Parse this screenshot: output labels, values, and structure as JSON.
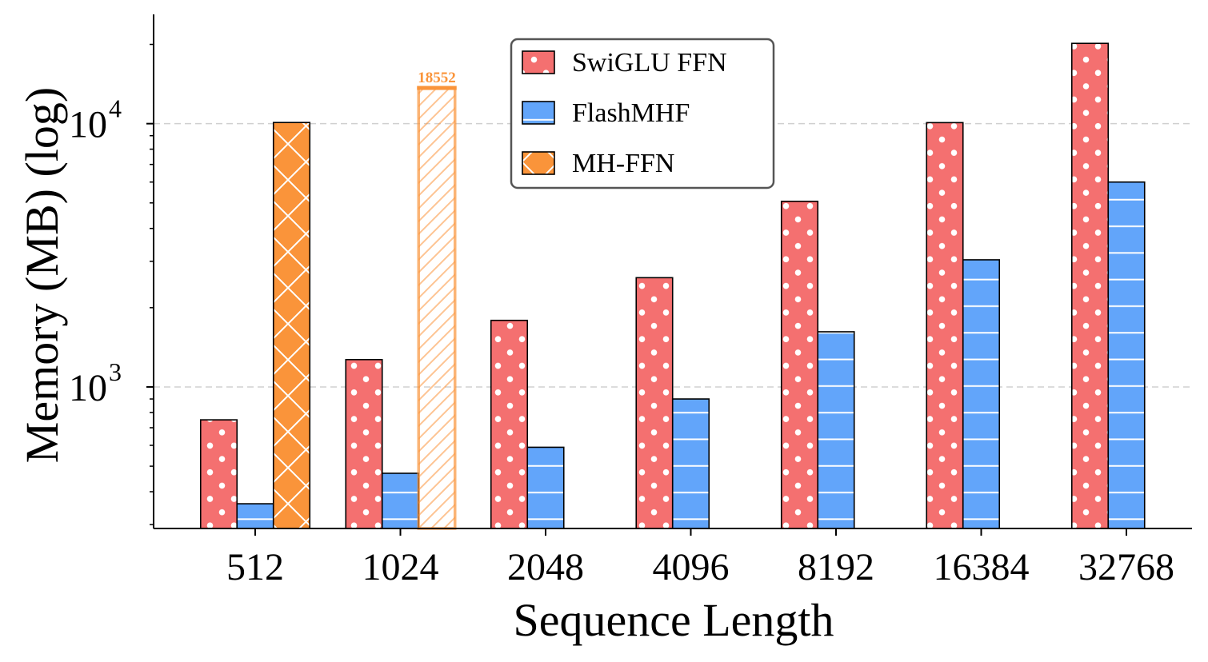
{
  "chart_data": {
    "type": "bar",
    "title": "",
    "xlabel": "Sequence Length",
    "ylabel": "Memory (MB) (log)",
    "yscale": "log",
    "ylim": [
      290,
      26000
    ],
    "categories": [
      "512",
      "1024",
      "2048",
      "4096",
      "8192",
      "16384",
      "32768"
    ],
    "series": [
      {
        "name": "SwiGLU FFN",
        "color": "#f47070",
        "pattern": "dots",
        "values": [
          750,
          1270,
          1790,
          2600,
          5070,
          10090,
          20180
        ]
      },
      {
        "name": "FlashMHF",
        "color": "#62a5fa",
        "pattern": "hlines",
        "values": [
          360,
          470,
          590,
          900,
          1620,
          3040,
          6000
        ]
      },
      {
        "name": "MH-FFN",
        "color": "#fa943a",
        "pattern": "cross",
        "values": [
          10100,
          null,
          null,
          null,
          null,
          null,
          null
        ]
      }
    ],
    "oom_bar": {
      "series": "MH-FFN",
      "category": "1024",
      "label": "18552",
      "value": 18552
    },
    "yticks": [
      {
        "value": 1000,
        "base": "10",
        "exp": "3"
      },
      {
        "value": 10000,
        "base": "10",
        "exp": "4"
      }
    ],
    "grid": "horizontal-dashed-major",
    "legend_position": "top-center"
  }
}
